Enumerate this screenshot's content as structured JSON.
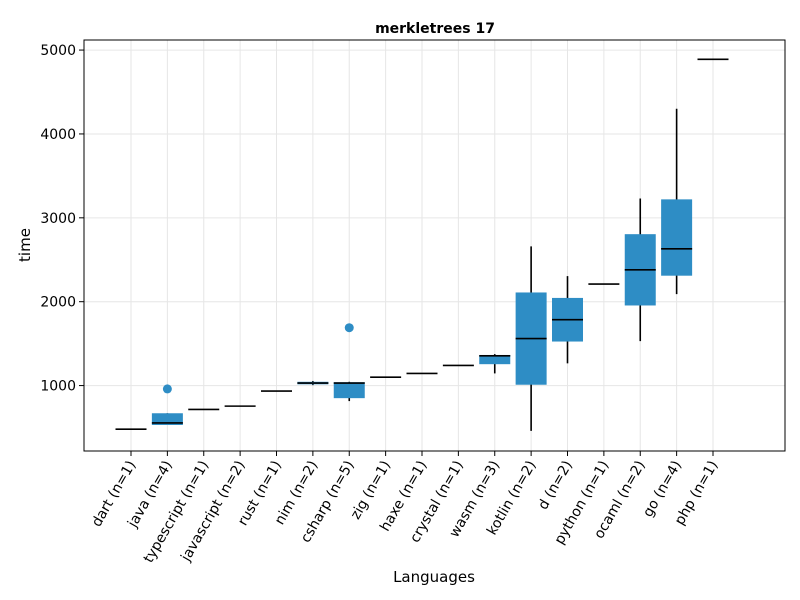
{
  "chart_data": {
    "type": "box",
    "title": "merkletrees 17",
    "xlabel": "Languages",
    "ylabel": "time",
    "ylim": [
      220,
      5120
    ],
    "yticks": [
      1000,
      2000,
      3000,
      4000,
      5000
    ],
    "grid": true,
    "box_color": "#2e8dc5",
    "categories": [
      "dart (n=1)",
      "java (n=4)",
      "typescript (n=1)",
      "javascript (n=2)",
      "rust (n=1)",
      "nim (n=2)",
      "csharp (n=5)",
      "zig (n=1)",
      "haxe (n=1)",
      "crystal (n=1)",
      "wasm (n=3)",
      "kotlin (n=2)",
      "d (n=2)",
      "python (n=1)",
      "ocaml (n=2)",
      "go (n=4)",
      "php (n=1)"
    ],
    "boxes": [
      {
        "q1": 480,
        "median": 480,
        "q3": 480,
        "whisker_low": 480,
        "whisker_high": 480,
        "outliers": []
      },
      {
        "q1": 530,
        "median": 555,
        "q3": 670,
        "whisker_low": 530,
        "whisker_high": 670,
        "outliers": [
          960
        ]
      },
      {
        "q1": 715,
        "median": 715,
        "q3": 715,
        "whisker_low": 715,
        "whisker_high": 715,
        "outliers": []
      },
      {
        "q1": 755,
        "median": 755,
        "q3": 755,
        "whisker_low": 755,
        "whisker_high": 755,
        "outliers": []
      },
      {
        "q1": 935,
        "median": 935,
        "q3": 935,
        "whisker_low": 935,
        "whisker_high": 935,
        "outliers": []
      },
      {
        "q1": 1015,
        "median": 1030,
        "q3": 1045,
        "whisker_low": 1005,
        "whisker_high": 1055,
        "outliers": []
      },
      {
        "q1": 850,
        "median": 1030,
        "q3": 1040,
        "whisker_low": 815,
        "whisker_high": 1045,
        "outliers": [
          1690
        ]
      },
      {
        "q1": 1100,
        "median": 1100,
        "q3": 1100,
        "whisker_low": 1100,
        "whisker_high": 1100,
        "outliers": []
      },
      {
        "q1": 1145,
        "median": 1145,
        "q3": 1145,
        "whisker_low": 1145,
        "whisker_high": 1145,
        "outliers": []
      },
      {
        "q1": 1240,
        "median": 1240,
        "q3": 1240,
        "whisker_low": 1240,
        "whisker_high": 1240,
        "outliers": []
      },
      {
        "q1": 1255,
        "median": 1355,
        "q3": 1365,
        "whisker_low": 1145,
        "whisker_high": 1375,
        "outliers": []
      },
      {
        "q1": 1010,
        "median": 1560,
        "q3": 2110,
        "whisker_low": 460,
        "whisker_high": 2660,
        "outliers": []
      },
      {
        "q1": 1525,
        "median": 1785,
        "q3": 2045,
        "whisker_low": 1265,
        "whisker_high": 2305,
        "outliers": []
      },
      {
        "q1": 2210,
        "median": 2210,
        "q3": 2210,
        "whisker_low": 2210,
        "whisker_high": 2210,
        "outliers": []
      },
      {
        "q1": 1955,
        "median": 2380,
        "q3": 2805,
        "whisker_low": 1530,
        "whisker_high": 3230,
        "outliers": []
      },
      {
        "q1": 2310,
        "median": 2630,
        "q3": 3220,
        "whisker_low": 2090,
        "whisker_high": 4300,
        "outliers": []
      },
      {
        "q1": 4890,
        "median": 4890,
        "q3": 4890,
        "whisker_low": 4890,
        "whisker_high": 4890,
        "outliers": []
      }
    ]
  }
}
